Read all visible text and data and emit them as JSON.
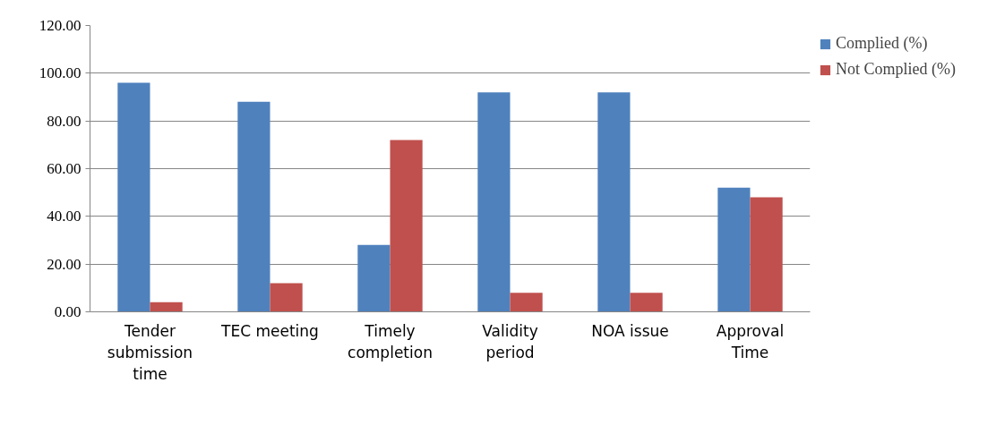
{
  "chart_data": {
    "type": "bar",
    "categories": [
      "Tender submission time",
      "TEC meeting",
      "Timely completion",
      "Validity period",
      "NOA issue",
      "Approval Time"
    ],
    "series": [
      {
        "name": "Complied (%)",
        "color": "#4f81bd",
        "values": [
          96,
          88,
          28,
          92,
          92,
          52
        ]
      },
      {
        "name": "Not Complied (%)",
        "color": "#c0504d",
        "values": [
          4,
          12,
          72,
          8,
          8,
          48
        ]
      }
    ],
    "ylim": [
      0,
      120
    ],
    "yticks": [
      {
        "value": 0,
        "label": "0.00"
      },
      {
        "value": 20,
        "label": "20.00"
      },
      {
        "value": 40,
        "label": "40.00"
      },
      {
        "value": 60,
        "label": "60.00"
      },
      {
        "value": 80,
        "label": "80.00"
      },
      {
        "value": 100,
        "label": "100.00"
      },
      {
        "value": 120,
        "label": "120.00"
      }
    ],
    "grid": "y",
    "legend": "top right"
  }
}
